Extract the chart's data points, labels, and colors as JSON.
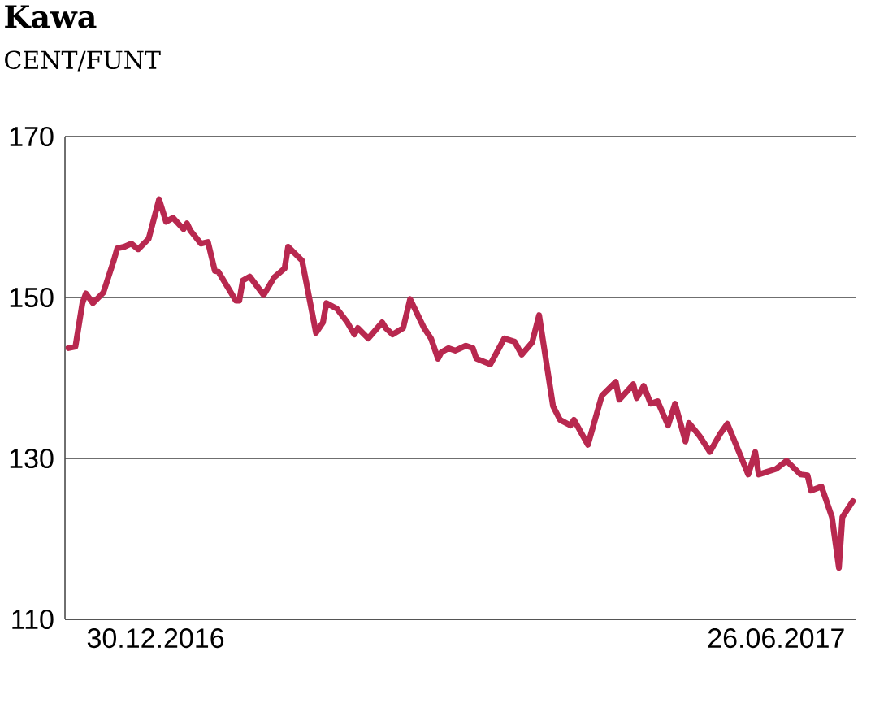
{
  "chart_data": {
    "type": "line",
    "title": "Kawa",
    "subtitle": "CENT/FUNT",
    "x": [
      "2016-12-05",
      "2016-12-07",
      "2016-12-09",
      "2016-12-10",
      "2016-12-12",
      "2016-12-15",
      "2016-12-18",
      "2016-12-19",
      "2016-12-21",
      "2016-12-23",
      "2016-12-25",
      "2016-12-28",
      "2016-12-31",
      "2017-01-02",
      "2017-01-04",
      "2017-01-07",
      "2017-01-08",
      "2017-01-09",
      "2017-01-12",
      "2017-01-14",
      "2017-01-16",
      "2017-01-17",
      "2017-01-22",
      "2017-01-23",
      "2017-01-24",
      "2017-01-26",
      "2017-01-30",
      "2017-02-02",
      "2017-02-05",
      "2017-02-06",
      "2017-02-10",
      "2017-02-14",
      "2017-02-16",
      "2017-02-17",
      "2017-02-20",
      "2017-02-23",
      "2017-02-25",
      "2017-02-26",
      "2017-03-01",
      "2017-03-05",
      "2017-03-06",
      "2017-03-08",
      "2017-03-11",
      "2017-03-13",
      "2017-03-17",
      "2017-03-19",
      "2017-03-21",
      "2017-03-22",
      "2017-03-24",
      "2017-03-26",
      "2017-03-29",
      "2017-03-31",
      "2017-04-01",
      "2017-04-05",
      "2017-04-09",
      "2017-04-12",
      "2017-04-14",
      "2017-04-17",
      "2017-04-19",
      "2017-04-23",
      "2017-04-25",
      "2017-04-28",
      "2017-04-29",
      "2017-05-03",
      "2017-05-07",
      "2017-05-11",
      "2017-05-12",
      "2017-05-16",
      "2017-05-17",
      "2017-05-19",
      "2017-05-21",
      "2017-05-23",
      "2017-05-26",
      "2017-05-28",
      "2017-05-31",
      "2017-06-01",
      "2017-06-04",
      "2017-06-07",
      "2017-06-10",
      "2017-06-12",
      "2017-06-18",
      "2017-06-20",
      "2017-06-21",
      "2017-06-26",
      "2017-06-29",
      "2017-07-03",
      "2017-07-05",
      "2017-07-06",
      "2017-07-09",
      "2017-07-12",
      "2017-07-14",
      "2017-07-15",
      "2017-07-18"
    ],
    "values": [
      143.7,
      143.9,
      149.3,
      150.5,
      149.3,
      150.6,
      154.6,
      156.1,
      156.3,
      156.7,
      156.0,
      157.3,
      162.2,
      159.4,
      159.9,
      158.5,
      159.2,
      158.3,
      156.7,
      156.9,
      153.3,
      153.2,
      149.6,
      149.6,
      152.1,
      152.6,
      150.3,
      152.5,
      153.6,
      156.3,
      154.6,
      145.6,
      146.9,
      149.3,
      148.6,
      146.9,
      145.4,
      146.2,
      144.9,
      146.9,
      146.2,
      145.4,
      146.2,
      149.8,
      146.2,
      144.9,
      142.4,
      143.2,
      143.7,
      143.4,
      144.0,
      143.7,
      142.4,
      141.7,
      144.9,
      144.5,
      142.9,
      144.4,
      147.8,
      136.5,
      134.8,
      134.1,
      134.8,
      131.7,
      137.8,
      139.5,
      137.3,
      139.2,
      137.5,
      139.0,
      136.8,
      137.1,
      134.1,
      136.8,
      132.1,
      134.4,
      132.8,
      130.8,
      133.1,
      134.3,
      128.0,
      130.8,
      128.0,
      128.7,
      129.7,
      128.0,
      127.9,
      126.0,
      126.5,
      122.7,
      116.4,
      122.7,
      124.7
    ],
    "color": "#b8284f",
    "line_style": "solid",
    "xlim": [
      "2016-12-04",
      "2017-07-19"
    ],
    "xticks": [
      {
        "value": "2016-12-30",
        "label": "30.12.2016"
      },
      {
        "value": "2017-06-26",
        "label": "26.06.2017"
      }
    ],
    "ylim": [
      110,
      170
    ],
    "yticks": [
      110,
      130,
      150,
      170
    ],
    "grid": "y"
  }
}
